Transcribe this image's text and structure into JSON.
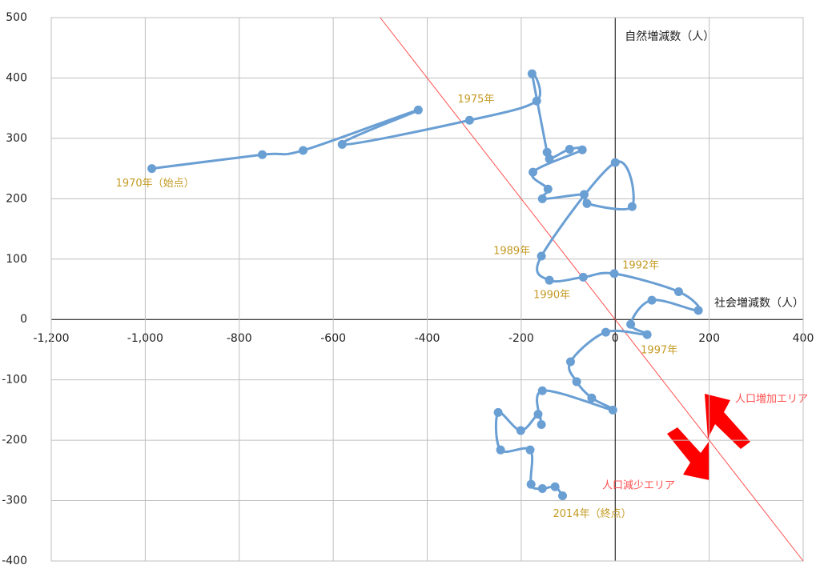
{
  "chart_data": {
    "type": "scatter",
    "x_label": "社会増減数（人）",
    "y_label": "自然増減数（人）",
    "x": [
      -986,
      -751,
      -664,
      -419,
      -581,
      -310,
      -167,
      -177,
      -145,
      -140,
      -97,
      -70,
      -175,
      -143,
      -155,
      -66,
      -60,
      36,
      0,
      -157,
      -140,
      -68,
      -2,
      135,
      177,
      78,
      33,
      68,
      -20,
      -95,
      -82,
      -50,
      -5,
      -155,
      -157,
      -164,
      -201,
      -249,
      -244,
      -181,
      -179,
      -155,
      -128,
      -112
    ],
    "values": [
      250,
      273,
      280,
      347,
      290,
      330,
      362,
      407,
      277,
      266,
      282,
      281,
      244,
      216,
      200,
      207,
      192,
      187,
      260,
      105,
      65,
      70,
      76,
      46,
      15,
      32,
      -8,
      -25,
      -21,
      -70,
      -103,
      -130,
      -150,
      -118,
      -174,
      -157,
      -184,
      -154,
      -216,
      -216,
      -273,
      -280,
      -277,
      -292
    ],
    "point_labels": [
      "1970年（始点）",
      null,
      null,
      null,
      null,
      "1975年",
      null,
      null,
      null,
      null,
      null,
      null,
      null,
      null,
      null,
      null,
      null,
      null,
      null,
      "1989年",
      "1990年",
      null,
      "1992年",
      null,
      null,
      null,
      null,
      "1997年",
      null,
      null,
      null,
      null,
      null,
      null,
      null,
      null,
      null,
      null,
      null,
      null,
      null,
      null,
      null,
      "2014年（終点）"
    ],
    "color": "#6a9fd4",
    "label_color": "#c49a22",
    "reference_line": {
      "x": [
        -500,
        400
      ],
      "y": [
        500,
        -400
      ],
      "color": "#ff5050"
    },
    "areas": [
      "人口増加エリア",
      "人口減少エリア"
    ],
    "xlim": [
      -1200,
      400
    ],
    "xticks": [
      {
        "value": -1200,
        "label": "-1,200"
      },
      {
        "value": -1000,
        "label": "-1,000"
      },
      -800,
      -600,
      -400,
      -200,
      0,
      200,
      400
    ],
    "ylim": [
      -400,
      500
    ],
    "yticks": [
      -400,
      -300,
      -200,
      -100,
      0,
      100,
      200,
      300,
      400,
      500
    ],
    "grid": true
  }
}
